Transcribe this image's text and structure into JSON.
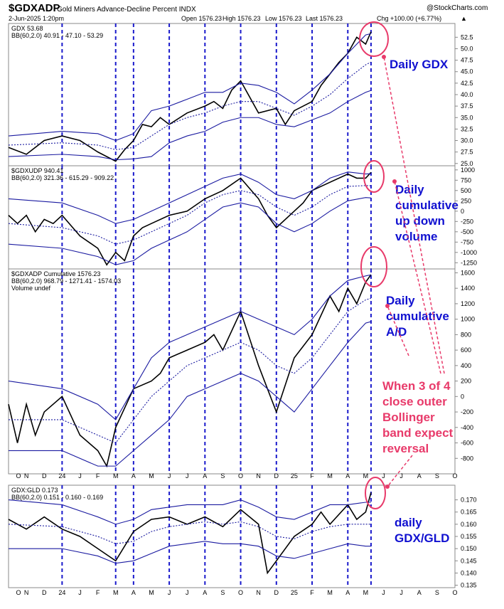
{
  "header": {
    "symbol": "$GDXADP",
    "name": "Gold Miners Advance-Decline Percent INDX",
    "source": "@StockCharts.com",
    "datetime": "2-Jun-2025 1:20pm",
    "open": "Open 1576.23",
    "high": "High 1576.23",
    "low": "Low 1576.23",
    "last": "Last 1576.23",
    "change": "Chg +100.00 (+6.77%)",
    "change_arrow": "▲"
  },
  "panels": [
    {
      "id": "gdx",
      "legend1": "GDX 53.68",
      "legend2": "BB(60,2.0) 40.91 - 47.10 - 53.29",
      "legend3": ""
    },
    {
      "id": "udv",
      "legend1": "$GDXUDP 940.41",
      "legend2": "BB(60,2.0) 321.36 - 615.29 - 909.22",
      "legend3": ""
    },
    {
      "id": "adl",
      "legend1": "$GDXADP Cumulative 1576.23",
      "legend2": "BB(60,2.0) 968.79 - 1271.41 - 1574.03",
      "legend3": "Volume undef"
    },
    {
      "id": "ratio",
      "legend1": "GDX:GLD 0.173",
      "legend2": "BB(60,2.0) 0.151 - 0.160 - 0.169",
      "legend3": ""
    }
  ],
  "month_labels": [
    "O",
    "N",
    "D",
    "24",
    "J",
    "F",
    "M",
    "A",
    "M",
    "J",
    "J",
    "A",
    "S",
    "O",
    "N",
    "D",
    "25",
    "F",
    "M",
    "A",
    "M",
    "J",
    "J",
    "A",
    "S",
    "O"
  ],
  "annotations": {
    "gdx": "Daily GDX",
    "udv": [
      "Daily",
      "cumulative",
      "up down",
      "volume"
    ],
    "adl": [
      "Daily",
      "cumulative",
      "A/D"
    ],
    "note": [
      "When 3 of 4",
      "close outer",
      "Bollinger",
      "band expect",
      "reversal"
    ],
    "ratio": [
      "daily",
      "GDX/GLD"
    ]
  },
  "colors": {
    "price": "#000000",
    "band": "#1a1aa0",
    "vline": "#1a1acc",
    "annot_blue": "#1010d0",
    "annot_red": "#e83a6a",
    "circle": "#e83a6a",
    "adl_down": "#b01030"
  },
  "chart_data": [
    {
      "type": "line",
      "title": "GDX 53.68",
      "x_range": [
        "2023-10",
        "2025-10"
      ],
      "y_ticks": [
        25.0,
        27.5,
        30.0,
        32.5,
        35.0,
        37.5,
        40.0,
        42.5,
        45.0,
        47.5,
        50.0,
        52.5
      ],
      "ylim": [
        24.5,
        55.5
      ],
      "grid": false,
      "series": [
        {
          "name": "GDX",
          "x": [
            0,
            1,
            2,
            3,
            4,
            5,
            6,
            6.5,
            7,
            7.5,
            8,
            8.5,
            9,
            10,
            11,
            11.5,
            12,
            12.5,
            13,
            14,
            15,
            15.5,
            16,
            17,
            17.5,
            18,
            18.5,
            19,
            19.5,
            20,
            20.3
          ],
          "values": [
            28.5,
            27,
            30,
            31,
            30,
            27.5,
            25.5,
            28,
            30,
            33.5,
            33,
            35,
            33.5,
            36,
            37.5,
            38.5,
            37,
            41,
            43,
            36,
            37,
            33.5,
            36.5,
            38.5,
            42,
            44.5,
            47,
            49,
            52.5,
            51,
            53.68
          ]
        },
        {
          "name": "BB upper",
          "x": [
            0,
            3,
            5,
            6,
            7,
            8,
            9,
            10,
            11,
            12,
            13,
            14,
            15,
            16,
            17,
            18,
            19,
            20,
            20.3
          ],
          "values": [
            31,
            32,
            31.5,
            30,
            31.5,
            36.5,
            37.5,
            39,
            40.5,
            40.5,
            42.5,
            42,
            40.5,
            38,
            41,
            44.5,
            49,
            53,
            53.29
          ]
        },
        {
          "name": "BB middle",
          "x": [
            0,
            3,
            5,
            6,
            7,
            8,
            9,
            10,
            11,
            12,
            13,
            14,
            15,
            16,
            17,
            18,
            19,
            20,
            20.3
          ],
          "values": [
            29,
            29.5,
            29,
            28,
            28.5,
            31,
            33.5,
            35,
            36,
            37.5,
            38.5,
            38.5,
            37,
            35.5,
            37.5,
            40,
            43.5,
            46.5,
            47.1
          ]
        },
        {
          "name": "BB lower",
          "x": [
            0,
            3,
            5,
            6,
            7,
            8,
            9,
            10,
            11,
            12,
            13,
            14,
            15,
            16,
            17,
            18,
            19,
            20,
            20.3
          ],
          "values": [
            26.5,
            27,
            26.5,
            25.8,
            26,
            26.5,
            29.5,
            31,
            32,
            34,
            35,
            35,
            33.5,
            33,
            34.5,
            36,
            38.5,
            40.5,
            40.91
          ]
        }
      ]
    },
    {
      "type": "line",
      "title": "$GDXUDP 940.41",
      "y_ticks": [
        -1250,
        -1000,
        -750,
        -500,
        -250,
        0,
        250,
        500,
        750,
        1000
      ],
      "ylim": [
        -1400,
        1100
      ],
      "series": [
        {
          "name": "UDV",
          "x": [
            0,
            0.5,
            1,
            1.5,
            2,
            2.5,
            3,
            4,
            5,
            5.5,
            6,
            6.5,
            7,
            7.5,
            8,
            9,
            10,
            11,
            12,
            13,
            14,
            14.5,
            15,
            16,
            16.5,
            17,
            18,
            19,
            19.5,
            20,
            20.3
          ],
          "values": [
            -100,
            -300,
            -100,
            -500,
            -200,
            -300,
            -100,
            -600,
            -900,
            -1300,
            -1000,
            -1200,
            -600,
            -400,
            -300,
            -100,
            0,
            300,
            500,
            800,
            300,
            -100,
            -400,
            0,
            200,
            500,
            700,
            900,
            800,
            800,
            940.41
          ]
        },
        {
          "name": "BB upper",
          "x": [
            0,
            3,
            5,
            6,
            7,
            8,
            9,
            10,
            11,
            12,
            13,
            14,
            15,
            16,
            17,
            18,
            19,
            20,
            20.3
          ],
          "values": [
            300,
            200,
            -100,
            -300,
            -200,
            0,
            200,
            400,
            600,
            800,
            900,
            700,
            400,
            300,
            500,
            800,
            950,
            900,
            909.22
          ]
        },
        {
          "name": "BB middle",
          "x": [
            0,
            3,
            5,
            6,
            7,
            8,
            9,
            10,
            11,
            12,
            13,
            14,
            15,
            16,
            17,
            18,
            19,
            20,
            20.3
          ],
          "values": [
            -300,
            -400,
            -600,
            -800,
            -700,
            -500,
            -300,
            -100,
            200,
            400,
            500,
            400,
            100,
            -100,
            100,
            400,
            600,
            620,
            615.29
          ]
        },
        {
          "name": "BB lower",
          "x": [
            0,
            3,
            5,
            6,
            7,
            8,
            9,
            10,
            11,
            12,
            13,
            14,
            15,
            16,
            17,
            18,
            19,
            20,
            20.3
          ],
          "values": [
            -800,
            -900,
            -1100,
            -1300,
            -1200,
            -900,
            -700,
            -500,
            -200,
            100,
            200,
            100,
            -300,
            -500,
            -300,
            0,
            250,
            330,
            321.36
          ]
        }
      ]
    },
    {
      "type": "line",
      "title": "$GDXADP Cumulative 1576.23",
      "y_ticks": [
        -800,
        -600,
        -400,
        -200,
        0,
        200,
        400,
        600,
        800,
        1000,
        1200,
        1400,
        1600
      ],
      "ylim": [
        -1000,
        1650
      ],
      "series": [
        {
          "name": "Cumulative A/D",
          "x": [
            0,
            0.5,
            1,
            1.5,
            2,
            3,
            4,
            5,
            5.5,
            6,
            7,
            8,
            8.5,
            9,
            10,
            11,
            11.5,
            12,
            13,
            14,
            14.5,
            15,
            16,
            17,
            18,
            18.5,
            19,
            19.5,
            20,
            20.3
          ],
          "values": [
            -100,
            -600,
            -100,
            -500,
            -200,
            0,
            -500,
            -700,
            -900,
            -400,
            100,
            200,
            300,
            500,
            600,
            700,
            800,
            600,
            1100,
            400,
            100,
            -200,
            500,
            800,
            1300,
            1100,
            1400,
            1200,
            1480,
            1576.23
          ]
        },
        {
          "name": "BB upper",
          "x": [
            0,
            3,
            5,
            6,
            7,
            8,
            9,
            10,
            11,
            12,
            13,
            14,
            15,
            16,
            17,
            18,
            19,
            20,
            20.3
          ],
          "values": [
            200,
            100,
            -100,
            -300,
            100,
            500,
            700,
            800,
            900,
            1000,
            1100,
            1000,
            900,
            800,
            1000,
            1300,
            1500,
            1560,
            1574.03
          ]
        },
        {
          "name": "BB middle",
          "x": [
            0,
            3,
            5,
            6,
            7,
            8,
            9,
            10,
            11,
            12,
            13,
            14,
            15,
            16,
            17,
            18,
            19,
            20,
            20.3
          ],
          "values": [
            -300,
            -300,
            -500,
            -600,
            -300,
            0,
            200,
            400,
            500,
            600,
            700,
            600,
            400,
            300,
            500,
            800,
            1100,
            1250,
            1271.41
          ]
        },
        {
          "name": "BB lower",
          "x": [
            0,
            3,
            5,
            6,
            7,
            8,
            9,
            10,
            11,
            12,
            13,
            14,
            15,
            16,
            17,
            18,
            19,
            20,
            20.3
          ],
          "values": [
            -700,
            -700,
            -900,
            -900,
            -700,
            -500,
            -300,
            0,
            100,
            200,
            300,
            200,
            0,
            -200,
            100,
            400,
            700,
            950,
            968.79
          ]
        }
      ]
    },
    {
      "type": "line",
      "title": "GDX:GLD 0.173",
      "y_ticks": [
        0.135,
        0.14,
        0.145,
        0.15,
        0.155,
        0.16,
        0.165,
        0.17
      ],
      "ylim": [
        0.134,
        0.176
      ],
      "series": [
        {
          "name": "GDX:GLD",
          "x": [
            0,
            1,
            2,
            3,
            4,
            5,
            6,
            7,
            8,
            9,
            10,
            11,
            12,
            13,
            14,
            14.5,
            15,
            16,
            17,
            17.5,
            18,
            19,
            19.5,
            20,
            20.3
          ],
          "values": [
            0.162,
            0.158,
            0.163,
            0.158,
            0.155,
            0.15,
            0.145,
            0.157,
            0.162,
            0.163,
            0.16,
            0.163,
            0.159,
            0.166,
            0.16,
            0.14,
            0.145,
            0.155,
            0.16,
            0.165,
            0.16,
            0.168,
            0.162,
            0.165,
            0.173
          ]
        },
        {
          "name": "BB upper",
          "x": [
            0,
            3,
            5,
            6,
            7,
            8,
            9,
            10,
            11,
            12,
            13,
            14,
            15,
            16,
            17,
            18,
            19,
            20,
            20.3
          ],
          "values": [
            0.17,
            0.168,
            0.163,
            0.16,
            0.162,
            0.166,
            0.167,
            0.168,
            0.168,
            0.168,
            0.17,
            0.167,
            0.163,
            0.162,
            0.165,
            0.168,
            0.168,
            0.169,
            0.169
          ]
        },
        {
          "name": "BB middle",
          "x": [
            0,
            3,
            5,
            6,
            7,
            8,
            9,
            10,
            11,
            12,
            13,
            14,
            15,
            16,
            17,
            18,
            19,
            20,
            20.3
          ],
          "values": [
            0.16,
            0.159,
            0.155,
            0.152,
            0.153,
            0.157,
            0.159,
            0.16,
            0.161,
            0.16,
            0.161,
            0.159,
            0.155,
            0.154,
            0.157,
            0.159,
            0.16,
            0.16,
            0.16
          ]
        },
        {
          "name": "BB lower",
          "x": [
            0,
            3,
            5,
            6,
            7,
            8,
            9,
            10,
            11,
            12,
            13,
            14,
            15,
            16,
            17,
            18,
            19,
            20,
            20.3
          ],
          "values": [
            0.15,
            0.15,
            0.147,
            0.144,
            0.145,
            0.148,
            0.151,
            0.152,
            0.153,
            0.152,
            0.152,
            0.151,
            0.147,
            0.146,
            0.148,
            0.15,
            0.152,
            0.151,
            0.151
          ]
        }
      ]
    }
  ]
}
